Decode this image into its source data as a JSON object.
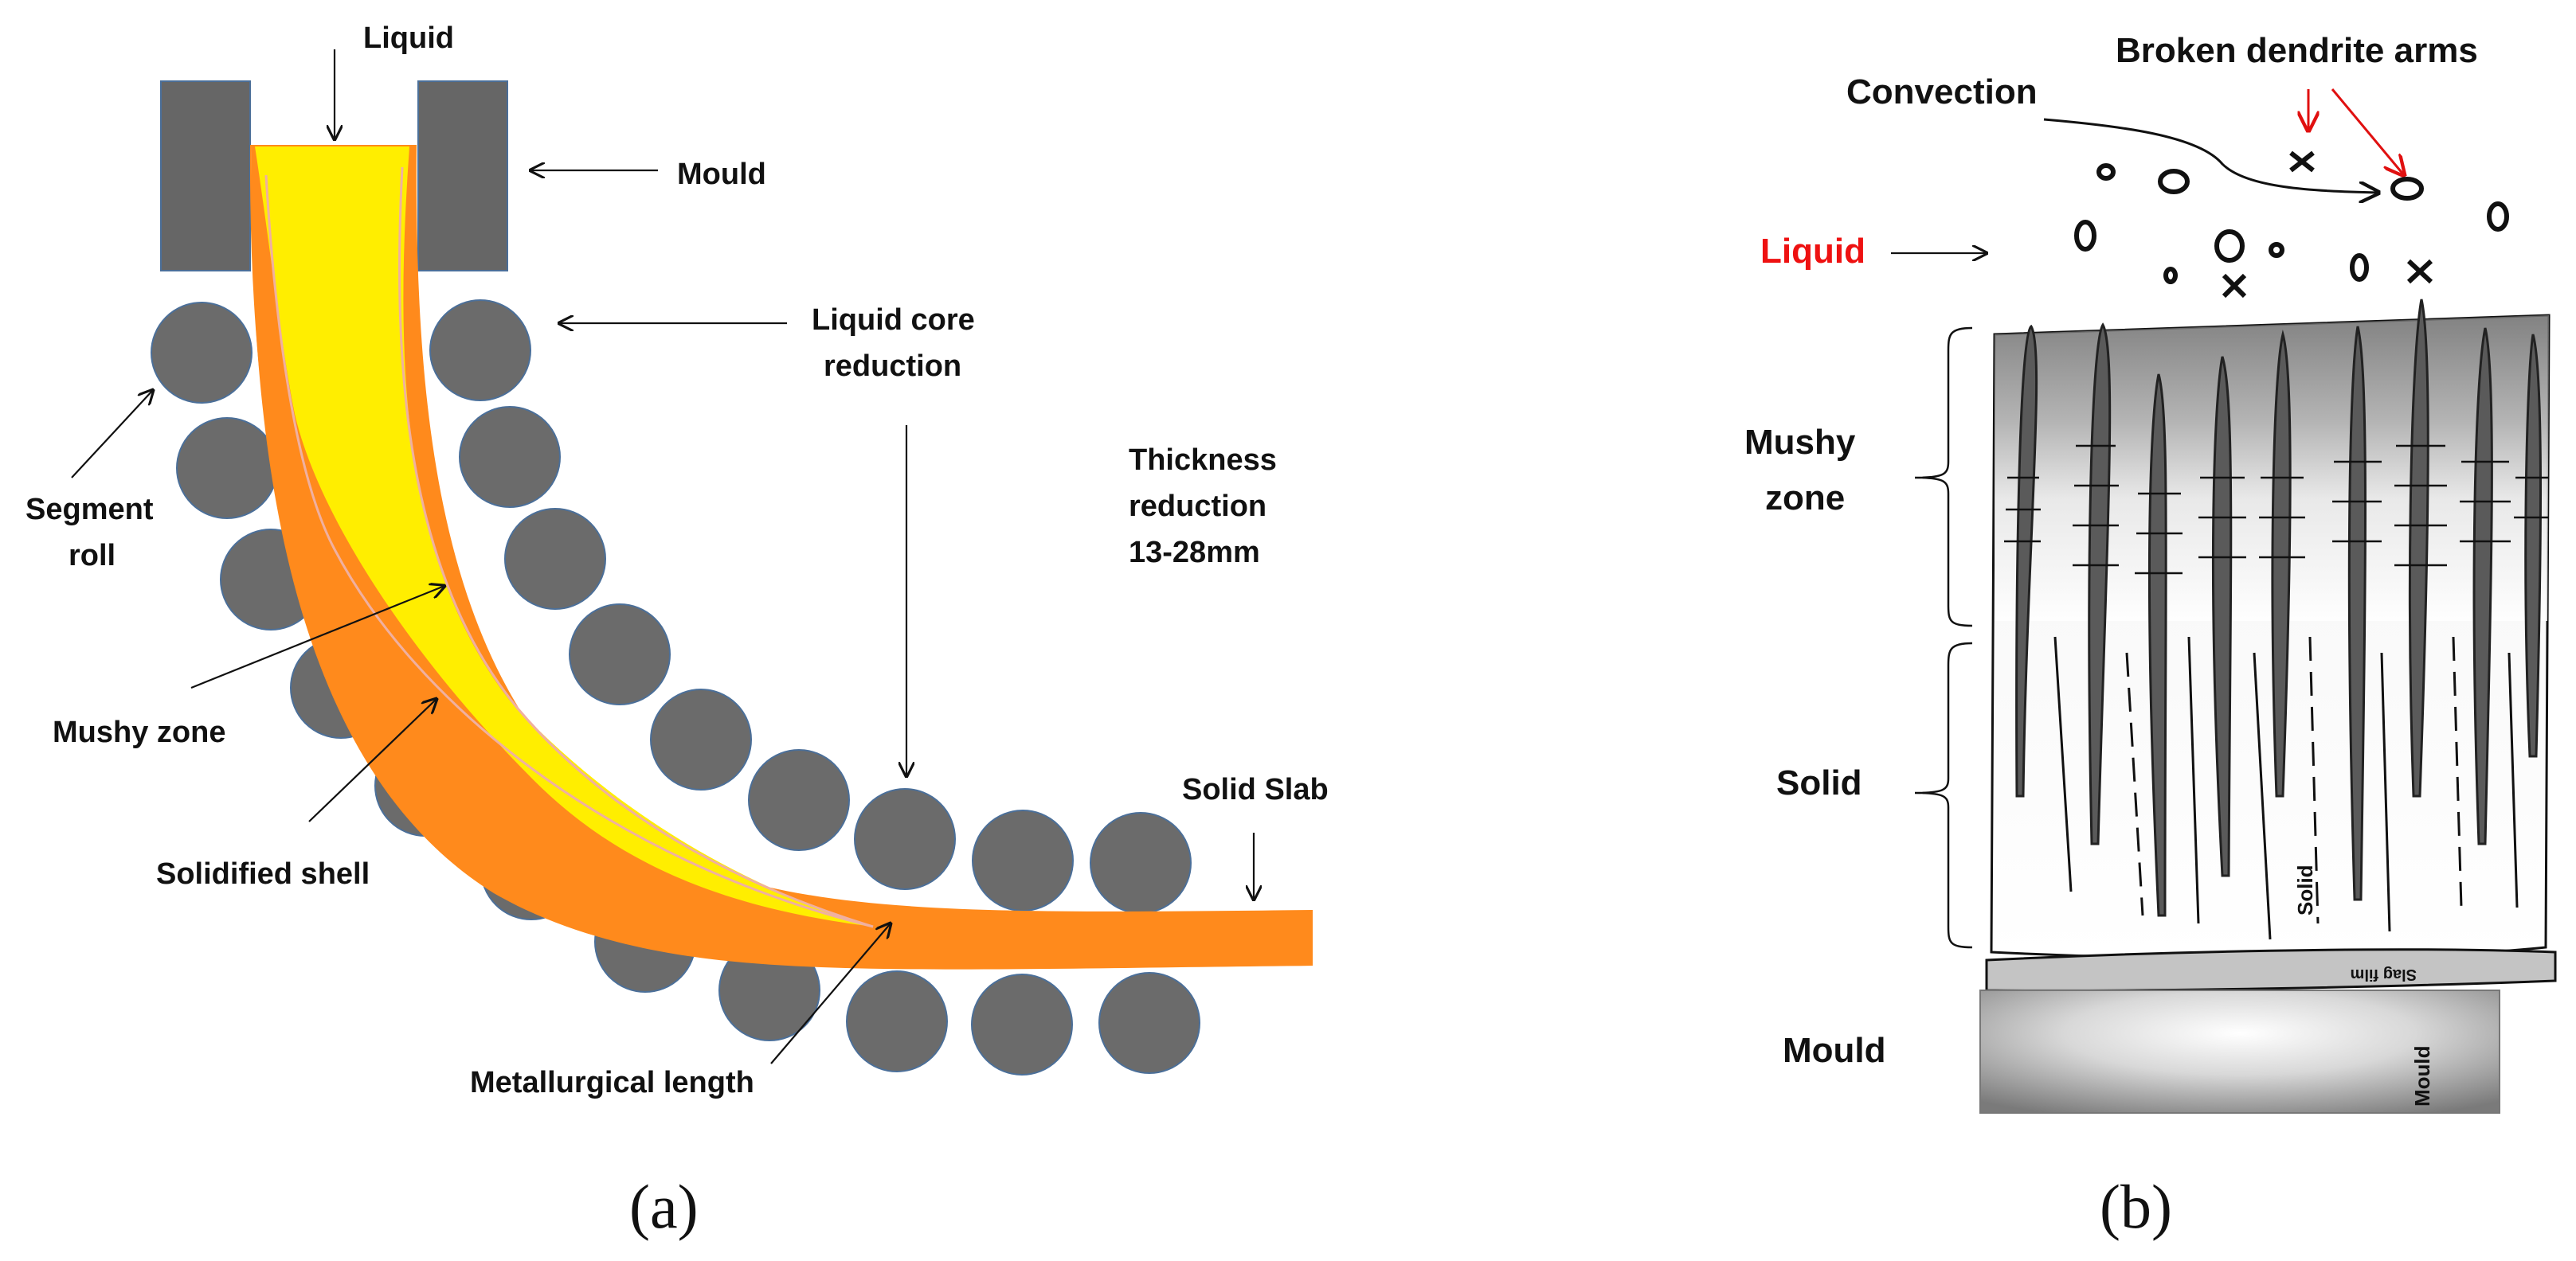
{
  "panel_a": {
    "caption": "(a)",
    "labels": {
      "liquid": "Liquid",
      "mould": "Mould",
      "liquid_core_reduction_line1": "Liquid core",
      "liquid_core_reduction_line2": "reduction",
      "thickness_line1": "Thickness",
      "thickness_line2": "reduction",
      "thickness_line3": "13-28mm",
      "segment_roll_line1": "Segment",
      "segment_roll_line2": "roll",
      "mushy_zone": "Mushy zone",
      "solidified_shell": "Solidified shell",
      "solid_slab": "Solid Slab",
      "metallurgical_length": "Metallurgical length"
    }
  },
  "panel_b": {
    "caption": "(b)",
    "labels": {
      "convection": "Convection",
      "broken_dendrite_arms": "Broken dendrite arms",
      "liquid": "Liquid",
      "mushy_zone_line1": "Mushy",
      "mushy_zone_line2": "zone",
      "solid": "Solid",
      "mould": "Mould",
      "solid_vertical": "Solid",
      "slag_film": "Slag film",
      "mould_vertical": "Mould"
    }
  },
  "colors": {
    "roll": "#6b6b6b",
    "mould_block": "#666666",
    "liquid_core": "#ffee00",
    "shell": "#ff8a1c",
    "liquid_label_b": "#ee1111",
    "red_arrow": "#e01010"
  }
}
